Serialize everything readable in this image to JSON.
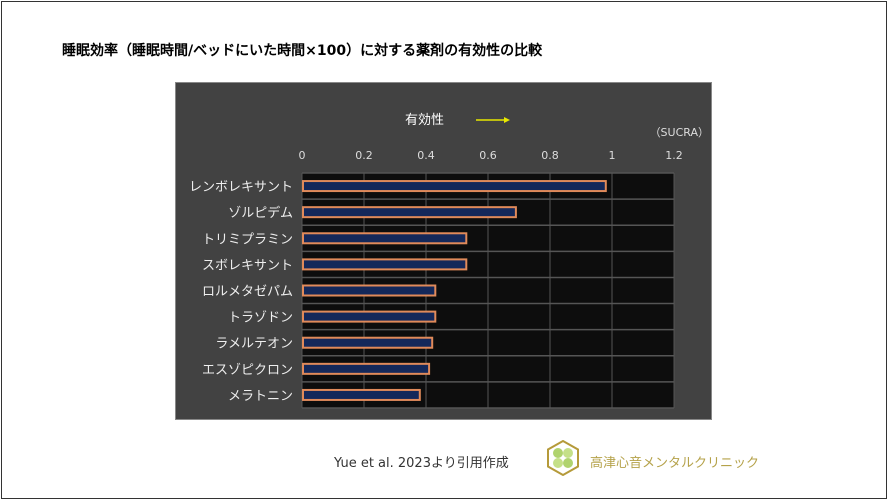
{
  "title": "睡眠効率（睡眠時間/ベッドにいた時間×100）に対する薬剤の有効性の比較",
  "source": "Yue et al. 2023より引用作成",
  "clinic": "高津心音メンタルクリニック",
  "colors": {
    "panel": "#424242",
    "plot": "#0d0d0d",
    "bar_fill": "#14285a",
    "bar_edge": "#e08a5a",
    "arrow": "#e8e800"
  },
  "chart_data": {
    "type": "bar",
    "orientation": "horizontal",
    "title": "有効性",
    "unit_label": "（SUCRA）",
    "categories": [
      "レンボレキサント",
      "ゾルピデム",
      "トリミプラミン",
      "スボレキサント",
      "ロルメタゼパム",
      "トラゾドン",
      "ラメルテオン",
      "エスゾピクロン",
      "メラトニン"
    ],
    "values": [
      0.98,
      0.69,
      0.53,
      0.53,
      0.43,
      0.43,
      0.42,
      0.41,
      0.38
    ],
    "xticks": [
      "0",
      "0.2",
      "0.4",
      "0.6",
      "0.8",
      "1",
      "1.2"
    ],
    "xlim": [
      0,
      1.2
    ],
    "grid": true,
    "axis_position": "top"
  }
}
